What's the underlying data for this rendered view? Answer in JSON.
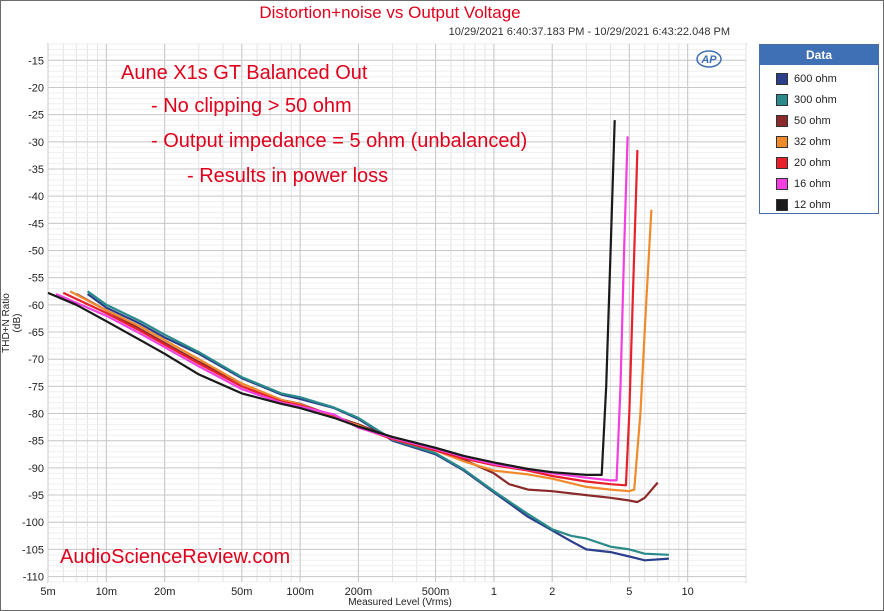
{
  "chart_data": {
    "type": "line",
    "title": "Distortion+noise vs Output Voltage",
    "subtitle": "10/29/2021 6:40:37.183 PM - 10/29/2021 6:43:22.048 PM",
    "xlabel": "Measured Level (Vrms)",
    "ylabel": "THD+N Ratio (dB)",
    "x_scale": "log",
    "xlim": [
      0.005,
      20
    ],
    "ylim": [
      -111,
      -12
    ],
    "grid": true,
    "legend_title": "Data",
    "legend_position": "right",
    "x_ticks": [
      {
        "v": 0.005,
        "label": "5m"
      },
      {
        "v": 0.01,
        "label": "10m"
      },
      {
        "v": 0.02,
        "label": "20m"
      },
      {
        "v": 0.05,
        "label": "50m"
      },
      {
        "v": 0.1,
        "label": "100m"
      },
      {
        "v": 0.2,
        "label": "200m"
      },
      {
        "v": 0.5,
        "label": "500m"
      },
      {
        "v": 1,
        "label": "1"
      },
      {
        "v": 2,
        "label": "2"
      },
      {
        "v": 5,
        "label": "5"
      },
      {
        "v": 10,
        "label": "10"
      }
    ],
    "y_ticks": [
      -15,
      -20,
      -25,
      -30,
      -35,
      -40,
      -45,
      -50,
      -55,
      -60,
      -65,
      -70,
      -75,
      -80,
      -85,
      -90,
      -95,
      -100,
      -105,
      -110
    ],
    "annotations": [
      "Aune X1s GT Balanced Out",
      "- No clipping > 50 ohm",
      "- Output impedance = 5 ohm (unbalanced)",
      "- Results in power loss"
    ],
    "watermark": "AudioScienceReview.com",
    "logo": "AP",
    "series": [
      {
        "name": "600 ohm",
        "color": "#2b3f8c",
        "points": [
          [
            0.008,
            -58
          ],
          [
            0.01,
            -60.5
          ],
          [
            0.015,
            -63.5
          ],
          [
            0.02,
            -66
          ],
          [
            0.03,
            -69
          ],
          [
            0.05,
            -73.5
          ],
          [
            0.08,
            -76.5
          ],
          [
            0.1,
            -77.3
          ],
          [
            0.15,
            -79
          ],
          [
            0.2,
            -81
          ],
          [
            0.3,
            -85
          ],
          [
            0.5,
            -87.5
          ],
          [
            0.7,
            -90.5
          ],
          [
            1,
            -94.5
          ],
          [
            1.5,
            -99
          ],
          [
            2,
            -101.5
          ],
          [
            2.5,
            -103.5
          ],
          [
            3,
            -105
          ],
          [
            4,
            -105.5
          ],
          [
            5,
            -106.3
          ],
          [
            6,
            -107
          ],
          [
            8,
            -106.7
          ]
        ]
      },
      {
        "name": "300 ohm",
        "color": "#2a8a8a",
        "points": [
          [
            0.008,
            -57.5
          ],
          [
            0.01,
            -60
          ],
          [
            0.015,
            -63
          ],
          [
            0.02,
            -65.5
          ],
          [
            0.03,
            -68.7
          ],
          [
            0.05,
            -73.3
          ],
          [
            0.08,
            -76.3
          ],
          [
            0.1,
            -77
          ],
          [
            0.15,
            -78.9
          ],
          [
            0.2,
            -80.8
          ],
          [
            0.3,
            -84.8
          ],
          [
            0.5,
            -87.3
          ],
          [
            0.7,
            -90.3
          ],
          [
            1,
            -94.3
          ],
          [
            1.5,
            -98.5
          ],
          [
            2,
            -101.3
          ],
          [
            2.5,
            -102.5
          ],
          [
            3,
            -103
          ],
          [
            4,
            -104.5
          ],
          [
            5,
            -105
          ],
          [
            6,
            -105.8
          ],
          [
            8,
            -106
          ]
        ]
      },
      {
        "name": "50 ohm",
        "color": "#8b2a2a",
        "points": [
          [
            0.007,
            -58
          ],
          [
            0.01,
            -61
          ],
          [
            0.015,
            -64.5
          ],
          [
            0.02,
            -67
          ],
          [
            0.03,
            -70.5
          ],
          [
            0.05,
            -74.5
          ],
          [
            0.08,
            -77.5
          ],
          [
            0.1,
            -78.2
          ],
          [
            0.15,
            -80.5
          ],
          [
            0.2,
            -82
          ],
          [
            0.3,
            -84.5
          ],
          [
            0.5,
            -86.5
          ],
          [
            0.7,
            -88.5
          ],
          [
            1,
            -91
          ],
          [
            1.2,
            -93
          ],
          [
            1.5,
            -94
          ],
          [
            2,
            -94.3
          ],
          [
            3,
            -95
          ],
          [
            4,
            -95.5
          ],
          [
            5,
            -96
          ],
          [
            5.5,
            -96.3
          ],
          [
            6,
            -95.5
          ],
          [
            7,
            -92.7
          ]
        ]
      },
      {
        "name": "32 ohm",
        "color": "#f08a2c",
        "points": [
          [
            0.0065,
            -57.5
          ],
          [
            0.01,
            -61
          ],
          [
            0.015,
            -64
          ],
          [
            0.02,
            -66.5
          ],
          [
            0.03,
            -70
          ],
          [
            0.05,
            -74.5
          ],
          [
            0.08,
            -77.5
          ],
          [
            0.1,
            -78.3
          ],
          [
            0.15,
            -80.6
          ],
          [
            0.2,
            -82.2
          ],
          [
            0.3,
            -84.7
          ],
          [
            0.5,
            -86.8
          ],
          [
            0.7,
            -88.8
          ],
          [
            1,
            -90.5
          ],
          [
            1.5,
            -91.2
          ],
          [
            2,
            -92
          ],
          [
            3,
            -93.5
          ],
          [
            4,
            -94
          ],
          [
            5,
            -94.3
          ],
          [
            5.3,
            -94
          ],
          [
            5.7,
            -80
          ],
          [
            6.1,
            -60
          ],
          [
            6.5,
            -42.5
          ]
        ]
      },
      {
        "name": "20 ohm",
        "color": "#e8202c",
        "points": [
          [
            0.006,
            -57.8
          ],
          [
            0.01,
            -61.5
          ],
          [
            0.015,
            -64.8
          ],
          [
            0.02,
            -67.3
          ],
          [
            0.03,
            -70.8
          ],
          [
            0.05,
            -75
          ],
          [
            0.08,
            -77.8
          ],
          [
            0.1,
            -78.5
          ],
          [
            0.15,
            -80.3
          ],
          [
            0.2,
            -82.5
          ],
          [
            0.3,
            -84.7
          ],
          [
            0.5,
            -86.8
          ],
          [
            0.7,
            -88.3
          ],
          [
            1,
            -89.5
          ],
          [
            1.5,
            -90.5
          ],
          [
            2,
            -91.5
          ],
          [
            3,
            -92.5
          ],
          [
            4,
            -93
          ],
          [
            4.8,
            -93.2
          ],
          [
            5,
            -80
          ],
          [
            5.2,
            -60
          ],
          [
            5.5,
            -31.5
          ]
        ]
      },
      {
        "name": "16 ohm",
        "color": "#f23fe0",
        "points": [
          [
            0.0055,
            -58
          ],
          [
            0.01,
            -62
          ],
          [
            0.015,
            -65.3
          ],
          [
            0.02,
            -67.8
          ],
          [
            0.03,
            -71.3
          ],
          [
            0.05,
            -75.5
          ],
          [
            0.08,
            -78
          ],
          [
            0.1,
            -78.7
          ],
          [
            0.15,
            -80.2
          ],
          [
            0.2,
            -82.6
          ],
          [
            0.3,
            -84.5
          ],
          [
            0.5,
            -86.5
          ],
          [
            0.7,
            -88
          ],
          [
            1,
            -89.3
          ],
          [
            1.5,
            -90.3
          ],
          [
            2,
            -91
          ],
          [
            3,
            -91.8
          ],
          [
            4,
            -92.3
          ],
          [
            4.3,
            -92.3
          ],
          [
            4.5,
            -75
          ],
          [
            4.7,
            -50
          ],
          [
            4.9,
            -29
          ]
        ]
      },
      {
        "name": "12 ohm",
        "color": "#1a1a1a",
        "points": [
          [
            0.005,
            -57.8
          ],
          [
            0.007,
            -60
          ],
          [
            0.01,
            -63
          ],
          [
            0.015,
            -66.5
          ],
          [
            0.02,
            -69
          ],
          [
            0.03,
            -72.8
          ],
          [
            0.05,
            -76.3
          ],
          [
            0.08,
            -78.2
          ],
          [
            0.1,
            -79
          ],
          [
            0.15,
            -80.8
          ],
          [
            0.2,
            -82.4
          ],
          [
            0.3,
            -84.3
          ],
          [
            0.5,
            -86.3
          ],
          [
            0.7,
            -87.8
          ],
          [
            1,
            -89
          ],
          [
            1.5,
            -90.2
          ],
          [
            2,
            -90.8
          ],
          [
            3,
            -91.3
          ],
          [
            3.6,
            -91.3
          ],
          [
            3.8,
            -75
          ],
          [
            4.0,
            -50
          ],
          [
            4.2,
            -26
          ]
        ]
      }
    ]
  }
}
